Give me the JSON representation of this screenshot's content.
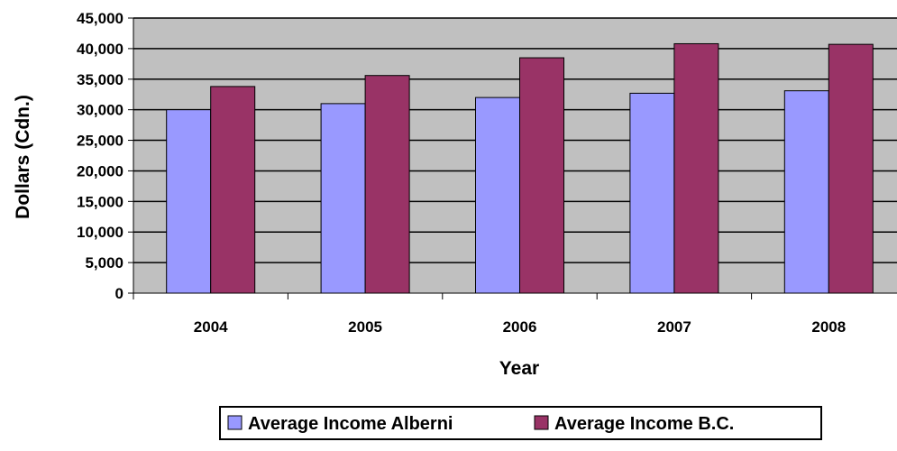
{
  "chart_data": {
    "type": "bar",
    "title": "",
    "xlabel": "Year",
    "ylabel": "Dollars (Cdn.)",
    "categories": [
      "2004",
      "2005",
      "2006",
      "2007",
      "2008"
    ],
    "ylim": [
      0,
      45000
    ],
    "yticks": [
      0,
      5000,
      10000,
      15000,
      20000,
      25000,
      30000,
      35000,
      40000,
      45000
    ],
    "ytick_labels": [
      "0",
      "5,000",
      "10,000",
      "15,000",
      "20,000",
      "25,000",
      "30,000",
      "35,000",
      "40,000",
      "45,000"
    ],
    "grid": true,
    "plot_background": "#c0c0c0",
    "legend_position": "bottom",
    "series": [
      {
        "name": "Average Income Alberni",
        "color": "#9999ff",
        "values": [
          30000,
          31000,
          32000,
          32700,
          33100
        ]
      },
      {
        "name": "Average Income B.C.",
        "color": "#993366",
        "values": [
          33800,
          35600,
          38500,
          40800,
          40700
        ]
      }
    ]
  }
}
